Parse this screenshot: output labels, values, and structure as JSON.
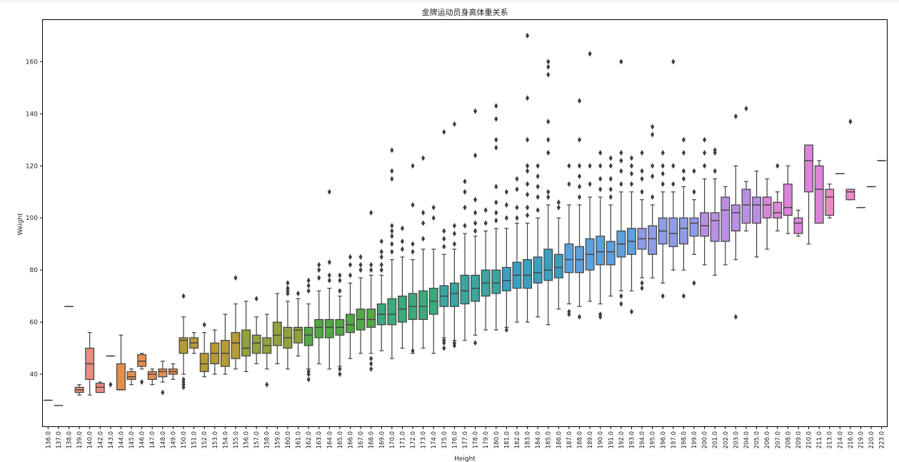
{
  "chart_data": {
    "type": "box",
    "title": "金牌运动员身高体重关系",
    "xlabel": "Height",
    "ylabel": "Weight",
    "ylim": [
      20,
      176
    ],
    "yticks": [
      40,
      60,
      80,
      100,
      120,
      140,
      160
    ],
    "grid": false,
    "categories": [
      "136.0",
      "137.0",
      "138.0",
      "139.0",
      "140.0",
      "142.0",
      "143.0",
      "144.0",
      "145.0",
      "146.0",
      "147.0",
      "148.0",
      "149.0",
      "150.0",
      "151.0",
      "152.0",
      "153.0",
      "154.0",
      "155.0",
      "156.0",
      "157.0",
      "158.0",
      "159.0",
      "160.0",
      "161.0",
      "162.0",
      "163.0",
      "164.0",
      "165.0",
      "166.0",
      "167.0",
      "168.0",
      "169.0",
      "170.0",
      "171.0",
      "172.0",
      "173.0",
      "174.0",
      "175.0",
      "176.0",
      "177.0",
      "178.0",
      "179.0",
      "180.0",
      "181.0",
      "182.0",
      "183.0",
      "184.0",
      "185.0",
      "186.0",
      "187.0",
      "188.0",
      "189.0",
      "190.0",
      "191.0",
      "192.0",
      "193.0",
      "194.0",
      "195.0",
      "196.0",
      "197.0",
      "198.0",
      "199.0",
      "200.0",
      "201.0",
      "202.0",
      "203.0",
      "204.0",
      "205.0",
      "206.0",
      "207.0",
      "208.0",
      "209.0",
      "210.0",
      "211.0",
      "213.0",
      "214.0",
      "216.0",
      "219.0",
      "220.0",
      "223.0"
    ],
    "boxes": [
      {
        "min": 30,
        "q1": 30,
        "median": 30,
        "q3": 30,
        "max": 30,
        "outliers": []
      },
      {
        "min": 28,
        "q1": 28,
        "median": 28,
        "q3": 28,
        "max": 28,
        "outliers": []
      },
      {
        "min": 66,
        "q1": 66,
        "median": 66,
        "q3": 66,
        "max": 66,
        "outliers": []
      },
      {
        "min": 32,
        "q1": 33,
        "median": 34,
        "q3": 35,
        "max": 36,
        "outliers": []
      },
      {
        "min": 32,
        "q1": 38,
        "median": 44,
        "q3": 50,
        "max": 56,
        "outliers": []
      },
      {
        "min": 33,
        "q1": 33,
        "median": 35,
        "q3": 36.5,
        "max": 37,
        "outliers": []
      },
      {
        "min": 47,
        "q1": 47,
        "median": 47,
        "q3": 47,
        "max": 47,
        "outliers": [
          36
        ]
      },
      {
        "min": 34,
        "q1": 34,
        "median": 34,
        "q3": 44,
        "max": 55,
        "outliers": []
      },
      {
        "min": 36,
        "q1": 38,
        "median": 39,
        "q3": 41,
        "max": 42,
        "outliers": []
      },
      {
        "min": 42,
        "q1": 43,
        "median": 45,
        "q3": 47.5,
        "max": 48,
        "outliers": [
          37
        ]
      },
      {
        "min": 36,
        "q1": 38,
        "median": 40,
        "q3": 41,
        "max": 42,
        "outliers": []
      },
      {
        "min": 37,
        "q1": 39,
        "median": 41,
        "q3": 42,
        "max": 45,
        "outliers": [
          33
        ]
      },
      {
        "min": 38,
        "q1": 40,
        "median": 41,
        "q3": 42,
        "max": 44,
        "outliers": []
      },
      {
        "min": 40,
        "q1": 48,
        "median": 53,
        "q3": 54,
        "max": 62,
        "outliers": [
          70,
          38,
          37,
          36,
          35
        ]
      },
      {
        "min": 48,
        "q1": 50,
        "median": 52,
        "q3": 54,
        "max": 56,
        "outliers": []
      },
      {
        "min": 39,
        "q1": 41,
        "median": 44,
        "q3": 48,
        "max": 56,
        "outliers": [
          59
        ]
      },
      {
        "min": 40,
        "q1": 44,
        "median": 48,
        "q3": 52,
        "max": 57,
        "outliers": []
      },
      {
        "min": 40,
        "q1": 43,
        "median": 48,
        "q3": 53,
        "max": 63,
        "outliers": []
      },
      {
        "min": 42,
        "q1": 46,
        "median": 52,
        "q3": 56,
        "max": 67,
        "outliers": [
          77
        ]
      },
      {
        "min": 41,
        "q1": 47,
        "median": 50,
        "q3": 57,
        "max": 68,
        "outliers": []
      },
      {
        "min": 44,
        "q1": 48,
        "median": 52,
        "q3": 55,
        "max": 62,
        "outliers": [
          69
        ]
      },
      {
        "min": 42,
        "q1": 48,
        "median": 51,
        "q3": 54,
        "max": 63,
        "outliers": [
          36
        ]
      },
      {
        "min": 44,
        "q1": 51,
        "median": 55,
        "q3": 60,
        "max": 71,
        "outliers": []
      },
      {
        "min": 42,
        "q1": 50,
        "median": 54,
        "q3": 58,
        "max": 68,
        "outliers": [
          71,
          72,
          73,
          75
        ]
      },
      {
        "min": 47,
        "q1": 52,
        "median": 57,
        "q3": 58,
        "max": 69,
        "outliers": [
          71
        ]
      },
      {
        "min": 42,
        "q1": 51,
        "median": 55,
        "q3": 58,
        "max": 67,
        "outliers": [
          38,
          40,
          41,
          72,
          74,
          76
        ]
      },
      {
        "min": 44,
        "q1": 54,
        "median": 58,
        "q3": 61,
        "max": 72,
        "outliers": [
          77,
          80,
          82
        ]
      },
      {
        "min": 42,
        "q1": 54,
        "median": 58,
        "q3": 61,
        "max": 73,
        "outliers": [
          110,
          83,
          78,
          76
        ]
      },
      {
        "min": 43,
        "q1": 55,
        "median": 58,
        "q3": 61,
        "max": 70,
        "outliers": [
          40,
          42,
          72,
          76,
          78
        ]
      },
      {
        "min": 46,
        "q1": 56,
        "median": 59,
        "q3": 63,
        "max": 75,
        "outliers": [
          78,
          82,
          85
        ]
      },
      {
        "min": 48,
        "q1": 57,
        "median": 61,
        "q3": 65,
        "max": 77,
        "outliers": [
          80,
          82,
          85
        ]
      },
      {
        "min": 48,
        "q1": 58,
        "median": 61,
        "q3": 65,
        "max": 78,
        "outliers": [
          42,
          44,
          46,
          80,
          82,
          102
        ]
      },
      {
        "min": 49,
        "q1": 59,
        "median": 63,
        "q3": 67,
        "max": 78,
        "outliers": [
          80,
          82,
          85,
          87,
          91
        ]
      },
      {
        "min": 46,
        "q1": 59,
        "median": 63,
        "q3": 69,
        "max": 84,
        "outliers": [
          87,
          90,
          93,
          95,
          97,
          115,
          118,
          126
        ]
      },
      {
        "min": 50,
        "q1": 60,
        "median": 65,
        "q3": 70,
        "max": 85,
        "outliers": [
          88,
          91,
          96
        ]
      },
      {
        "min": 48,
        "q1": 61,
        "median": 66,
        "q3": 71,
        "max": 84,
        "outliers": [
          49,
          87,
          90,
          105,
          120
        ]
      },
      {
        "min": 50,
        "q1": 61,
        "median": 66,
        "q3": 72,
        "max": 88,
        "outliers": [
          92,
          98,
          102,
          123
        ]
      },
      {
        "min": 48,
        "q1": 63,
        "median": 68,
        "q3": 73,
        "max": 88,
        "outliers": [
          100,
          104
        ]
      },
      {
        "min": 54,
        "q1": 66,
        "median": 70,
        "q3": 74,
        "max": 86,
        "outliers": [
          50,
          52,
          53,
          89,
          92,
          95,
          133
        ]
      },
      {
        "min": 53,
        "q1": 66,
        "median": 71,
        "q3": 75,
        "max": 88,
        "outliers": [
          51,
          52,
          90,
          94,
          97,
          136
        ]
      },
      {
        "min": 53,
        "q1": 67,
        "median": 72,
        "q3": 78,
        "max": 94,
        "outliers": [
          97,
          104,
          110,
          114
        ]
      },
      {
        "min": 55,
        "q1": 68,
        "median": 73,
        "q3": 78,
        "max": 93,
        "outliers": [
          52,
          95,
          98,
          102,
          107,
          124,
          141
        ]
      },
      {
        "min": 57,
        "q1": 70,
        "median": 75,
        "q3": 80,
        "max": 95,
        "outliers": [
          98,
          103
        ]
      },
      {
        "min": 57,
        "q1": 71,
        "median": 75,
        "q3": 80,
        "max": 96,
        "outliers": [
          99,
          102,
          106,
          112,
          127,
          130,
          138,
          143
        ]
      },
      {
        "min": 58,
        "q1": 72,
        "median": 76,
        "q3": 81,
        "max": 96,
        "outliers": [
          57,
          100,
          105,
          110
        ]
      },
      {
        "min": 60,
        "q1": 73,
        "median": 78,
        "q3": 83,
        "max": 98,
        "outliers": [
          100,
          104,
          111,
          115
        ]
      },
      {
        "min": 60,
        "q1": 73,
        "median": 78,
        "q3": 84,
        "max": 98,
        "outliers": [
          101,
          104,
          109,
          113,
          118,
          120,
          130,
          146,
          170
        ]
      },
      {
        "min": 62,
        "q1": 75,
        "median": 79,
        "q3": 85,
        "max": 100,
        "outliers": [
          103,
          108,
          112,
          116,
          120
        ]
      },
      {
        "min": 59,
        "q1": 76,
        "median": 80,
        "q3": 88,
        "max": 105,
        "outliers": [
          108,
          110,
          125,
          130,
          137,
          155,
          158,
          160
        ]
      },
      {
        "min": 65,
        "q1": 77,
        "median": 81,
        "q3": 86,
        "max": 100,
        "outliers": [
          104,
          106
        ]
      },
      {
        "min": 67,
        "q1": 79,
        "median": 84,
        "q3": 90,
        "max": 105,
        "outliers": [
          63,
          64,
          113,
          120
        ]
      },
      {
        "min": 66,
        "q1": 79,
        "median": 84,
        "q3": 89,
        "max": 105,
        "outliers": [
          62,
          108,
          112,
          116,
          120,
          130,
          145
        ]
      },
      {
        "min": 68,
        "q1": 80,
        "median": 86,
        "q3": 92,
        "max": 108,
        "outliers": [
          113,
          120,
          163
        ]
      },
      {
        "min": 67,
        "q1": 82,
        "median": 87,
        "q3": 93,
        "max": 108,
        "outliers": [
          62,
          63,
          111,
          115,
          120,
          125
        ]
      },
      {
        "min": 70,
        "q1": 82,
        "median": 87,
        "q3": 91,
        "max": 105,
        "outliers": [
          108,
          111,
          115,
          120,
          123
        ]
      },
      {
        "min": 72,
        "q1": 85,
        "median": 90,
        "q3": 95,
        "max": 110,
        "outliers": [
          67,
          70,
          113,
          118,
          122,
          125,
          160
        ]
      },
      {
        "min": 72,
        "q1": 86,
        "median": 91,
        "q3": 96,
        "max": 110,
        "outliers": [
          64,
          113,
          117,
          120,
          123
        ]
      },
      {
        "min": 77,
        "q1": 88,
        "median": 92,
        "q3": 96,
        "max": 107,
        "outliers": [
          73,
          75,
          110,
          115,
          118,
          125
        ]
      },
      {
        "min": 77,
        "q1": 86,
        "median": 92,
        "q3": 97,
        "max": 105,
        "outliers": [
          108,
          116,
          120,
          132,
          135
        ]
      },
      {
        "min": 75,
        "q1": 90,
        "median": 95,
        "q3": 100,
        "max": 110,
        "outliers": [
          70,
          113,
          117,
          120,
          125
        ]
      },
      {
        "min": 80,
        "q1": 89,
        "median": 94,
        "q3": 100,
        "max": 110,
        "outliers": [
          113,
          120,
          160
        ]
      },
      {
        "min": 80,
        "q1": 90,
        "median": 96,
        "q3": 100,
        "max": 112,
        "outliers": [
          70,
          115,
          118,
          125,
          130
        ]
      },
      {
        "min": 86,
        "q1": 93,
        "median": 98,
        "q3": 100,
        "max": 107,
        "outliers": [
          75,
          110,
          118
        ]
      },
      {
        "min": 82,
        "q1": 93,
        "median": 97,
        "q3": 102,
        "max": 115,
        "outliers": [
          120,
          125,
          130
        ]
      },
      {
        "min": 78,
        "q1": 91,
        "median": 99,
        "q3": 102,
        "max": 115,
        "outliers": [
          118,
          125,
          126
        ]
      },
      {
        "min": 82,
        "q1": 91,
        "median": 103,
        "q3": 108,
        "max": 112,
        "outliers": []
      },
      {
        "min": 84,
        "q1": 95,
        "median": 102,
        "q3": 105,
        "max": 120,
        "outliers": [
          62,
          139
        ]
      },
      {
        "min": 95,
        "q1": 98,
        "median": 105,
        "q3": 111,
        "max": 114,
        "outliers": [
          142
        ]
      },
      {
        "min": 85,
        "q1": 98,
        "median": 105,
        "q3": 108,
        "max": 118,
        "outliers": []
      },
      {
        "min": 88,
        "q1": 100,
        "median": 105,
        "q3": 108,
        "max": 115,
        "outliers": []
      },
      {
        "min": 95,
        "q1": 100,
        "median": 102,
        "q3": 106,
        "max": 110,
        "outliers": [
          120
        ]
      },
      {
        "min": 94,
        "q1": 101,
        "median": 104,
        "q3": 113,
        "max": 120,
        "outliers": []
      },
      {
        "min": 93,
        "q1": 94,
        "median": 98,
        "q3": 100,
        "max": 103,
        "outliers": []
      },
      {
        "min": 90,
        "q1": 110,
        "median": 122,
        "q3": 128,
        "max": 128,
        "outliers": []
      },
      {
        "min": 98,
        "q1": 98,
        "median": 111,
        "q3": 120,
        "max": 122,
        "outliers": []
      },
      {
        "min": 100,
        "q1": 101,
        "median": 108,
        "q3": 111,
        "max": 113,
        "outliers": []
      },
      {
        "min": 117,
        "q1": 117,
        "median": 117,
        "q3": 117,
        "max": 117,
        "outliers": []
      },
      {
        "min": 107,
        "q1": 107,
        "median": 110,
        "q3": 111,
        "max": 111,
        "outliers": [
          137
        ]
      },
      {
        "min": 104,
        "q1": 104,
        "median": 104,
        "q3": 104,
        "max": 104,
        "outliers": []
      },
      {
        "min": 112,
        "q1": 112,
        "median": 112,
        "q3": 112,
        "max": 112,
        "outliers": []
      },
      {
        "min": 122,
        "q1": 122,
        "median": 122,
        "q3": 122,
        "max": 122,
        "outliers": []
      }
    ],
    "colors": [
      "#ea8a80",
      "#e58f4e",
      "#b59a36",
      "#8ea33a",
      "#52a845",
      "#3caa7c",
      "#3ba5a0",
      "#3d9fbf",
      "#5ca0de",
      "#8f9ce6",
      "#b98fe4",
      "#db85d8",
      "#ea8bc4"
    ]
  }
}
